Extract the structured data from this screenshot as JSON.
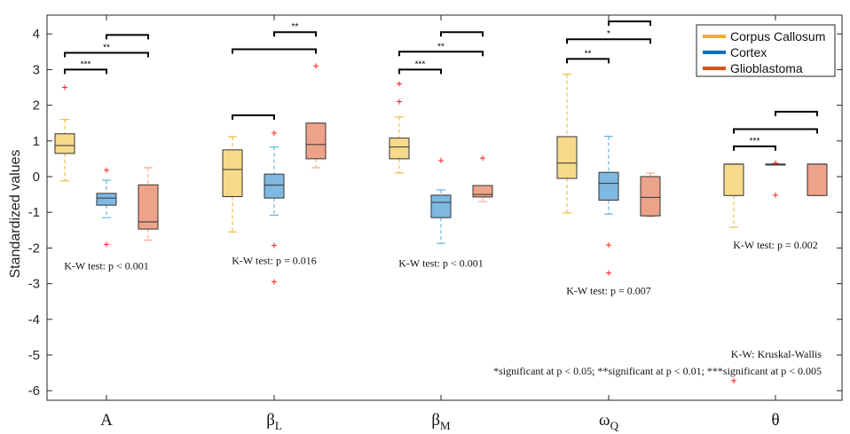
{
  "chart_data": {
    "type": "box",
    "ylabel": "Standardized values",
    "ylim": [
      -6.2,
      4.5
    ],
    "yticks": [
      4,
      3,
      2,
      1,
      0,
      -1,
      -2,
      -3,
      -4,
      -5,
      -6
    ],
    "groups": [
      {
        "label": "A",
        "sub": ""
      },
      {
        "label": "β",
        "sub": "L"
      },
      {
        "label": "β",
        "sub": "M"
      },
      {
        "label": "ω",
        "sub": "Q"
      },
      {
        "label": "θ",
        "sub": ""
      }
    ],
    "legend": {
      "position": "top-right",
      "items": [
        {
          "name": "Corpus Callosum",
          "color": "#edb120"
        },
        {
          "name": "Cortex",
          "color": "#0072bd"
        },
        {
          "name": "Glioblastoma",
          "color": "#d95319"
        }
      ]
    },
    "series_styles": [
      {
        "fill": "#f7d98b",
        "whisker": "#edb120"
      },
      {
        "fill": "#7fb8e0",
        "whisker": "#4da6dd"
      },
      {
        "fill": "#eda38a",
        "whisker": "#ec9c7a"
      }
    ],
    "boxes": [
      [
        {
          "q1": 0.65,
          "median": 0.87,
          "q3": 1.2,
          "lo": -0.12,
          "hi": 1.6,
          "outliers": [
            2.5
          ]
        },
        {
          "q1": -0.8,
          "median": -0.6,
          "q3": -0.47,
          "lo": -1.15,
          "hi": -0.1,
          "outliers": [
            0.18,
            -1.9
          ]
        },
        {
          "q1": -1.47,
          "median": -1.27,
          "q3": -0.23,
          "lo": -1.78,
          "hi": 0.25,
          "outliers": []
        }
      ],
      [
        {
          "q1": -0.56,
          "median": 0.2,
          "q3": 0.75,
          "lo": -1.55,
          "hi": 1.12,
          "outliers": []
        },
        {
          "q1": -0.6,
          "median": -0.24,
          "q3": 0.07,
          "lo": -1.08,
          "hi": 0.83,
          "outliers": [
            1.22,
            -1.93,
            -2.95
          ]
        },
        {
          "q1": 0.5,
          "median": 0.9,
          "q3": 1.5,
          "lo": 0.25,
          "hi": 1.5,
          "outliers": [
            3.1
          ]
        }
      ],
      [
        {
          "q1": 0.5,
          "median": 0.83,
          "q3": 1.08,
          "lo": 0.1,
          "hi": 1.67,
          "outliers": [
            2.6,
            2.1
          ]
        },
        {
          "q1": -1.15,
          "median": -0.72,
          "q3": -0.52,
          "lo": -1.87,
          "hi": -0.37,
          "outliers": [
            0.45
          ]
        },
        {
          "q1": -0.57,
          "median": -0.5,
          "q3": -0.25,
          "lo": -0.7,
          "hi": -0.25,
          "outliers": [
            0.52
          ]
        }
      ],
      [
        {
          "q1": -0.05,
          "median": 0.38,
          "q3": 1.12,
          "lo": -1.02,
          "hi": 2.87,
          "outliers": []
        },
        {
          "q1": -0.66,
          "median": -0.19,
          "q3": 0.12,
          "lo": -1.05,
          "hi": 1.13,
          "outliers": [
            -1.92,
            -2.7
          ]
        },
        {
          "q1": -1.1,
          "median": -0.58,
          "q3": 0.0,
          "lo": -1.12,
          "hi": 0.1,
          "outliers": []
        }
      ],
      [
        {
          "q1": -0.53,
          "median": 0.35,
          "q3": 0.35,
          "lo": -1.42,
          "hi": 0.35,
          "outliers": [
            -5.72
          ]
        },
        {
          "q1": 0.35,
          "median": 0.35,
          "q3": 0.35,
          "lo": 0.35,
          "hi": 0.35,
          "outliers": [
            0.38,
            -0.52
          ]
        },
        {
          "q1": -0.53,
          "median": 0.35,
          "q3": 0.35,
          "lo": -0.53,
          "hi": 0.35,
          "outliers": []
        }
      ]
    ],
    "significance": [
      {
        "group": 0,
        "from": 0,
        "to": 1,
        "y": 3.0,
        "stars": "***"
      },
      {
        "group": 0,
        "from": 0,
        "to": 2,
        "y": 3.47,
        "stars": "**"
      },
      {
        "group": 0,
        "from": 1,
        "to": 2,
        "y": 3.97,
        "stars": ""
      },
      {
        "group": 1,
        "from": 0,
        "to": 1,
        "y": 1.72,
        "stars": ""
      },
      {
        "group": 1,
        "from": 0,
        "to": 2,
        "y": 3.57,
        "stars": ""
      },
      {
        "group": 1,
        "from": 1,
        "to": 2,
        "y": 4.05,
        "stars": "**"
      },
      {
        "group": 2,
        "from": 0,
        "to": 1,
        "y": 3.0,
        "stars": "***"
      },
      {
        "group": 2,
        "from": 0,
        "to": 2,
        "y": 3.5,
        "stars": "**"
      },
      {
        "group": 2,
        "from": 1,
        "to": 2,
        "y": 4.05,
        "stars": ""
      },
      {
        "group": 3,
        "from": 0,
        "to": 1,
        "y": 3.3,
        "stars": "**"
      },
      {
        "group": 3,
        "from": 0,
        "to": 2,
        "y": 3.85,
        "stars": "*"
      },
      {
        "group": 3,
        "from": 1,
        "to": 2,
        "y": 4.35,
        "stars": ""
      },
      {
        "group": 4,
        "from": 0,
        "to": 1,
        "y": 0.85,
        "stars": "***"
      },
      {
        "group": 4,
        "from": 0,
        "to": 2,
        "y": 1.33,
        "stars": ""
      },
      {
        "group": 4,
        "from": 1,
        "to": 2,
        "y": 1.82,
        "stars": ""
      }
    ],
    "test_labels": [
      {
        "group": 0,
        "text": "K-W test: p < 0.001",
        "y": -2.5
      },
      {
        "group": 1,
        "text": "K-W test: p = 0.016",
        "y": -2.35
      },
      {
        "group": 2,
        "text": "K-W test: p < 0.001",
        "y": -2.43
      },
      {
        "group": 3,
        "text": "K-W test: p = 0.007",
        "y": -3.2
      },
      {
        "group": 4,
        "text": "K-W test: p = 0.002",
        "y": -1.92
      }
    ],
    "footnotes": [
      "K-W: Kruskal-Wallis",
      "*significant at p < 0.05; **significant at p < 0.01; ***significant at p < 0.005"
    ]
  }
}
